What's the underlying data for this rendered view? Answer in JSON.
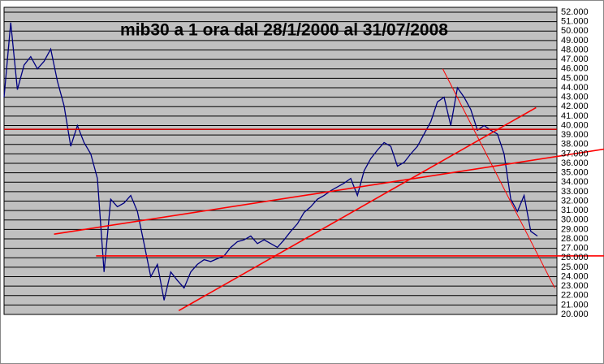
{
  "chart_data": {
    "type": "line",
    "title": "mib30 a 1 ora dal 28/1/2000 al 31/07/2008",
    "series": [
      {
        "color": "#000080",
        "values": [
          43000,
          50900,
          43800,
          46400,
          47300,
          46000,
          46800,
          48100,
          44700,
          42100,
          37800,
          40000,
          38200,
          37000,
          34400,
          24500,
          32200,
          31400,
          31800,
          32600,
          30900,
          27500,
          24000,
          25300,
          21500,
          24500,
          23600,
          22800,
          24500,
          25300,
          25800,
          25600,
          25900,
          26200,
          27100,
          27700,
          27900,
          28300,
          27500,
          27900,
          27500,
          27100,
          27900,
          28800,
          29600,
          30800,
          31400,
          32200,
          32600,
          33100,
          33500,
          33900,
          34400,
          32600,
          35200,
          36500,
          37400,
          38200,
          37800,
          35700,
          36100,
          37000,
          37800,
          39100,
          40400,
          42500,
          43000,
          40000,
          44000,
          43000,
          41700,
          39500,
          40000,
          39500,
          39100,
          37000,
          32200,
          30900,
          32600,
          28800,
          28300
        ]
      }
    ],
    "trendlines": [
      {
        "color": "#cc0000",
        "x": [
          0,
          82.9
        ],
        "y": [
          39600,
          39600
        ]
      },
      {
        "color": "#ff0000",
        "x": [
          13.8,
          90
        ],
        "y": [
          26200,
          26200
        ]
      },
      {
        "color": "#ff0000",
        "x": [
          7.5,
          90
        ],
        "y": [
          28500,
          37500
        ]
      },
      {
        "color": "#ff0000",
        "x": [
          26.2,
          79.8
        ],
        "y": [
          20400,
          41900
        ]
      },
      {
        "color": "#ff0000",
        "x": [
          65.8,
          82.6
        ],
        "y": [
          46000,
          22800
        ]
      }
    ],
    "ylim": [
      20000,
      52000
    ],
    "yticks": [
      {
        "value": 20000,
        "label": "20.000"
      },
      {
        "value": 21000,
        "label": "21.000"
      },
      {
        "value": 22000,
        "label": "22.000"
      },
      {
        "value": 23000,
        "label": "23.000"
      },
      {
        "value": 24000,
        "label": "24.000"
      },
      {
        "value": 25000,
        "label": "25.000"
      },
      {
        "value": 26000,
        "label": "26.000"
      },
      {
        "value": 27000,
        "label": "27.000"
      },
      {
        "value": 28000,
        "label": "28.000"
      },
      {
        "value": 29000,
        "label": "29.000"
      },
      {
        "value": 30000,
        "label": "30.000"
      },
      {
        "value": 31000,
        "label": "31.000"
      },
      {
        "value": 32000,
        "label": "32.000"
      },
      {
        "value": 33000,
        "label": "33.000"
      },
      {
        "value": 34000,
        "label": "34.000"
      },
      {
        "value": 35000,
        "label": "35.000"
      },
      {
        "value": 36000,
        "label": "36.000"
      },
      {
        "value": 37000,
        "label": "37.000"
      },
      {
        "value": 38000,
        "label": "38.000"
      },
      {
        "value": 39000,
        "label": "39.000"
      },
      {
        "value": 40000,
        "label": "40.000"
      },
      {
        "value": 41000,
        "label": "41.000"
      },
      {
        "value": 42000,
        "label": "42.000"
      },
      {
        "value": 43000,
        "label": "43.000"
      },
      {
        "value": 44000,
        "label": "44.000"
      },
      {
        "value": 45000,
        "label": "45.000"
      },
      {
        "value": 46000,
        "label": "46.000"
      },
      {
        "value": 47000,
        "label": "47.000"
      },
      {
        "value": 48000,
        "label": "48.000"
      },
      {
        "value": 49000,
        "label": "49.000"
      },
      {
        "value": 50000,
        "label": "50.000"
      },
      {
        "value": 51000,
        "label": "51.000"
      },
      {
        "value": 52000,
        "label": "52.000"
      }
    ],
    "grid": true
  }
}
